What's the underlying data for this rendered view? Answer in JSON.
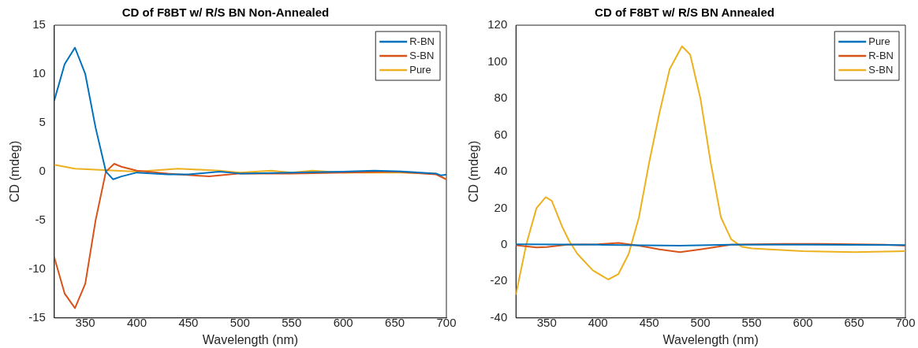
{
  "chart_data": [
    {
      "type": "line",
      "title": "CD of F8BT w/ R/S BN Non-Annealed",
      "xlabel": "Wavelength (nm)",
      "ylabel": "CD (mdeg)",
      "xlim": [
        320,
        700
      ],
      "xticks": [
        350,
        400,
        450,
        500,
        550,
        600,
        650,
        700
      ],
      "ylim": [
        -15,
        15
      ],
      "yticks": [
        -15,
        -10,
        -5,
        0,
        5,
        10,
        15
      ],
      "grid": false,
      "legend": "top right",
      "marker": "none",
      "line_style": "solid",
      "series": [
        {
          "name": "R-BN",
          "color": "#0072bd",
          "x": [
            320,
            330,
            340,
            350,
            360,
            370,
            377,
            385,
            400,
            430,
            450,
            480,
            500,
            550,
            600,
            630,
            660,
            690,
            695,
            700
          ],
          "values": [
            7.3,
            11,
            12.7,
            10,
            4.5,
            0,
            -0.8,
            -0.5,
            -0.1,
            -0.3,
            -0.3,
            0,
            -0.2,
            -0.1,
            0,
            0.1,
            0,
            -0.2,
            -0.4,
            -0.3
          ]
        },
        {
          "name": "S-BN",
          "color": "#d95319",
          "x": [
            320,
            330,
            340,
            350,
            360,
            370,
            378,
            385,
            400,
            430,
            470,
            480,
            500,
            550,
            600,
            650,
            690,
            700
          ],
          "values": [
            -8.8,
            -12.5,
            -14,
            -11.5,
            -5,
            0,
            0.8,
            0.5,
            0.1,
            -0.2,
            -0.5,
            -0.4,
            -0.2,
            -0.2,
            -0.1,
            0,
            -0.3,
            -0.8
          ]
        },
        {
          "name": "Pure",
          "color": "#edb120",
          "x": [
            320,
            340,
            360,
            380,
            400,
            440,
            460,
            480,
            500,
            530,
            550,
            570,
            600,
            650,
            690,
            700
          ],
          "values": [
            0.7,
            0.3,
            0.2,
            0.1,
            0,
            0.3,
            0.2,
            0.1,
            -0.1,
            0.1,
            -0.1,
            0.1,
            -0.1,
            -0.1,
            -0.2,
            -0.8
          ]
        }
      ]
    },
    {
      "type": "line",
      "title": "CD of F8BT w/ R/S BN Annealed",
      "xlabel": "Wavelength (nm)",
      "ylabel": "CD (mdeg)",
      "xlim": [
        320,
        700
      ],
      "xticks": [
        350,
        400,
        450,
        500,
        550,
        600,
        650,
        700
      ],
      "ylim": [
        -40,
        120
      ],
      "yticks": [
        -40,
        -20,
        0,
        20,
        40,
        60,
        80,
        100,
        120
      ],
      "grid": false,
      "legend": "top right",
      "marker": "none",
      "line_style": "solid",
      "series": [
        {
          "name": "Pure",
          "color": "#0072bd",
          "x": [
            320,
            400,
            480,
            530,
            600,
            700
          ],
          "values": [
            0.3,
            0,
            -0.5,
            0,
            0,
            -0.2
          ]
        },
        {
          "name": "R-BN",
          "color": "#d95319",
          "x": [
            320,
            340,
            350,
            370,
            400,
            420,
            440,
            460,
            480,
            500,
            530,
            580,
            620,
            680,
            700
          ],
          "values": [
            -0.3,
            -1.5,
            -1.2,
            0,
            0.3,
            1,
            -0.5,
            -2.5,
            -4,
            -2.5,
            0,
            0.5,
            0.5,
            0,
            -0.5
          ]
        },
        {
          "name": "S-BN",
          "color": "#edb120",
          "x": [
            320,
            330,
            340,
            349,
            355,
            365,
            372,
            380,
            395,
            410,
            420,
            430,
            440,
            450,
            460,
            470,
            482,
            490,
            500,
            510,
            520,
            530,
            540,
            550,
            600,
            650,
            700
          ],
          "values": [
            -27,
            0,
            20,
            26,
            24,
            10,
            2,
            -5,
            -14,
            -19,
            -16,
            -5,
            15,
            45,
            72,
            96,
            108.5,
            104,
            80,
            45,
            15,
            3,
            -1,
            -2,
            -3.5,
            -4,
            -3.5
          ]
        }
      ]
    }
  ]
}
